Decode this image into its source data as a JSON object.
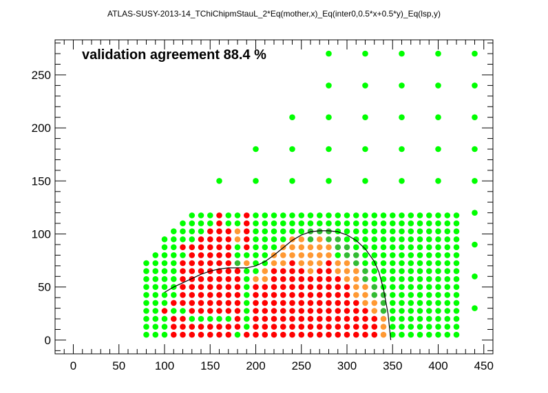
{
  "chart_data": {
    "type": "scatter",
    "title": "ATLAS-SUSY-2013-14_TChiChipmStauL_2*Eq(mother,x)_Eq(inter0,0.5*x+0.5*y)_Eq(lsp,y)",
    "annotation": "validation agreement 88.4 %",
    "xlabel": "",
    "ylabel": "",
    "xlim": [
      -20,
      460
    ],
    "ylim": [
      -13,
      283
    ],
    "xticks": [
      0,
      50,
      100,
      150,
      200,
      250,
      300,
      350,
      400,
      450
    ],
    "yticks": [
      0,
      50,
      100,
      150,
      200,
      250
    ],
    "colors": {
      "bright_green": "#00ff00",
      "dark_green": "#33bb33",
      "red": "#ff0000",
      "orange": "#ff9933",
      "curve": "#000000"
    },
    "grid_columns": {
      "x_start": 80,
      "x_step": 10,
      "x_end": 420,
      "y_start": 5,
      "y_step": 7.5
    },
    "grid_top": [
      75,
      85,
      95,
      105,
      115,
      120,
      120,
      120,
      120,
      120,
      120,
      120,
      120,
      120,
      120,
      120,
      120,
      120,
      120,
      120,
      120,
      120,
      120,
      120,
      120,
      120,
      120,
      120,
      120,
      120,
      120,
      120,
      120,
      120,
      120
    ],
    "category_runs": [
      {
        "x": 80,
        "runs": [
          [
            "G",
            5,
            75
          ]
        ]
      },
      {
        "x": 90,
        "runs": [
          [
            "G",
            5,
            85
          ]
        ]
      },
      {
        "x": 100,
        "runs": [
          [
            "G",
            5,
            27.5
          ],
          [
            "R",
            27.5,
            35
          ],
          [
            "G",
            35,
            95
          ]
        ]
      },
      {
        "x": 110,
        "runs": [
          [
            "R",
            5,
            27.5
          ],
          [
            "G",
            27.5,
            35
          ],
          [
            "R",
            35,
            42.5
          ],
          [
            "G",
            42.5,
            105
          ]
        ]
      },
      {
        "x": 120,
        "runs": [
          [
            "R",
            5,
            27.5
          ],
          [
            "G",
            27.5,
            35
          ],
          [
            "R",
            35,
            80
          ],
          [
            "G",
            80,
            87.5
          ],
          [
            "R",
            87.5,
            95
          ],
          [
            "G",
            95,
            115
          ]
        ]
      },
      {
        "x": 130,
        "runs": [
          [
            "R",
            5,
            20
          ],
          [
            "G",
            20,
            27.5
          ],
          [
            "R",
            27.5,
            95
          ],
          [
            "G",
            95,
            120
          ]
        ]
      },
      {
        "x": 140,
        "runs": [
          [
            "R",
            5,
            20
          ],
          [
            "G",
            20,
            27.5
          ],
          [
            "R",
            27.5,
            102.5
          ],
          [
            "G",
            102.5,
            120
          ]
        ]
      },
      {
        "x": 150,
        "runs": [
          [
            "R",
            5,
            20
          ],
          [
            "G",
            20,
            27.5
          ],
          [
            "R",
            27.5,
            110
          ],
          [
            "G",
            110,
            120
          ]
        ]
      },
      {
        "x": 160,
        "runs": [
          [
            "R",
            5,
            20
          ],
          [
            "G",
            20,
            27.5
          ],
          [
            "R",
            27.5,
            120
          ]
        ]
      },
      {
        "x": 170,
        "runs": [
          [
            "R",
            5,
            20
          ],
          [
            "G",
            20,
            27.5
          ],
          [
            "R",
            27.5,
            110
          ],
          [
            "G",
            110,
            120
          ]
        ]
      },
      {
        "x": 180,
        "runs": [
          [
            "G",
            5,
            12.5
          ],
          [
            "R",
            12.5,
            72.5
          ],
          [
            "D",
            72.5,
            80
          ],
          [
            "G",
            80,
            95
          ],
          [
            "O",
            95,
            110
          ],
          [
            "G",
            110,
            120
          ]
        ]
      },
      {
        "x": 190,
        "runs": [
          [
            "R",
            5,
            12.5
          ],
          [
            "G",
            12.5,
            72.5
          ],
          [
            "O",
            72.5,
            80
          ],
          [
            "G",
            80,
            87.5
          ],
          [
            "R",
            87.5,
            120
          ]
        ]
      },
      {
        "x": 200,
        "runs": [
          [
            "R",
            5,
            57.5
          ],
          [
            "O",
            57.5,
            65
          ],
          [
            "G",
            65,
            120
          ]
        ]
      },
      {
        "x": 210,
        "runs": [
          [
            "R",
            5,
            57.5
          ],
          [
            "O",
            57.5,
            72.5
          ],
          [
            "G",
            72.5,
            120
          ]
        ]
      },
      {
        "x": 220,
        "runs": [
          [
            "R",
            5,
            72.5
          ],
          [
            "O",
            72.5,
            87.5
          ],
          [
            "G",
            87.5,
            120
          ]
        ]
      },
      {
        "x": 230,
        "runs": [
          [
            "R",
            5,
            72.5
          ],
          [
            "O",
            72.5,
            95
          ],
          [
            "G",
            95,
            120
          ]
        ]
      },
      {
        "x": 240,
        "runs": [
          [
            "R",
            5,
            80
          ],
          [
            "O",
            80,
            102.5
          ],
          [
            "G",
            102.5,
            120
          ]
        ]
      },
      {
        "x": 250,
        "runs": [
          [
            "R",
            5,
            72.5
          ],
          [
            "O",
            72.5,
            102.5
          ],
          [
            "G",
            102.5,
            120
          ]
        ]
      },
      {
        "x": 260,
        "runs": [
          [
            "R",
            5,
            65
          ],
          [
            "O",
            65,
            95
          ],
          [
            "D",
            95,
            110
          ],
          [
            "G",
            110,
            120
          ]
        ]
      },
      {
        "x": 270,
        "runs": [
          [
            "R",
            5,
            72.5
          ],
          [
            "O",
            72.5,
            102.5
          ],
          [
            "D",
            102.5,
            110
          ],
          [
            "G",
            110,
            120
          ]
        ]
      },
      {
        "x": 280,
        "runs": [
          [
            "R",
            5,
            80
          ],
          [
            "O",
            80,
            95
          ],
          [
            "D",
            95,
            110
          ],
          [
            "G",
            110,
            120
          ]
        ]
      },
      {
        "x": 290,
        "runs": [
          [
            "R",
            5,
            65
          ],
          [
            "O",
            65,
            80
          ],
          [
            "G",
            80,
            87.5
          ],
          [
            "D",
            87.5,
            102.5
          ],
          [
            "G",
            102.5,
            120
          ]
        ]
      },
      {
        "x": 300,
        "runs": [
          [
            "R",
            5,
            57.5
          ],
          [
            "O",
            57.5,
            80
          ],
          [
            "D",
            80,
            95
          ],
          [
            "G",
            95,
            120
          ]
        ]
      },
      {
        "x": 310,
        "runs": [
          [
            "R",
            5,
            42.5
          ],
          [
            "O",
            42.5,
            72.5
          ],
          [
            "D",
            72.5,
            87.5
          ],
          [
            "G",
            87.5,
            120
          ]
        ]
      },
      {
        "x": 320,
        "runs": [
          [
            "R",
            5,
            35
          ],
          [
            "O",
            35,
            57.5
          ],
          [
            "D",
            57.5,
            72.5
          ],
          [
            "G",
            72.5,
            120
          ]
        ]
      },
      {
        "x": 330,
        "runs": [
          [
            "R",
            5,
            27.5
          ],
          [
            "O",
            27.5,
            42.5
          ],
          [
            "D",
            42.5,
            57.5
          ],
          [
            "G",
            57.5,
            120
          ]
        ]
      },
      {
        "x": 340,
        "runs": [
          [
            "O",
            5,
            27.5
          ],
          [
            "D",
            27.5,
            50
          ],
          [
            "G",
            50,
            120
          ]
        ]
      },
      {
        "x": 350,
        "runs": [
          [
            "G",
            5,
            120
          ]
        ]
      },
      {
        "x": 360,
        "runs": [
          [
            "G",
            5,
            120
          ]
        ]
      },
      {
        "x": 370,
        "runs": [
          [
            "G",
            5,
            120
          ]
        ]
      },
      {
        "x": 380,
        "runs": [
          [
            "G",
            5,
            120
          ]
        ]
      },
      {
        "x": 390,
        "runs": [
          [
            "G",
            5,
            120
          ]
        ]
      },
      {
        "x": 400,
        "runs": [
          [
            "G",
            5,
            120
          ]
        ]
      },
      {
        "x": 410,
        "runs": [
          [
            "G",
            5,
            120
          ]
        ]
      },
      {
        "x": 420,
        "runs": [
          [
            "G",
            5,
            120
          ]
        ]
      }
    ],
    "extra_points": [
      [
        440,
        30
      ],
      [
        440,
        60
      ],
      [
        440,
        90
      ],
      [
        440,
        120
      ],
      [
        440,
        150
      ],
      [
        440,
        180
      ],
      [
        440,
        210
      ],
      [
        440,
        240
      ],
      [
        440,
        270
      ],
      [
        160,
        150
      ],
      [
        200,
        150
      ],
      [
        240,
        150
      ],
      [
        280,
        150
      ],
      [
        320,
        150
      ],
      [
        360,
        150
      ],
      [
        400,
        150
      ],
      [
        200,
        180
      ],
      [
        240,
        180
      ],
      [
        280,
        180
      ],
      [
        320,
        180
      ],
      [
        360,
        180
      ],
      [
        400,
        180
      ],
      [
        240,
        210
      ],
      [
        280,
        210
      ],
      [
        320,
        210
      ],
      [
        360,
        210
      ],
      [
        400,
        210
      ],
      [
        280,
        240
      ],
      [
        320,
        240
      ],
      [
        360,
        240
      ],
      [
        400,
        240
      ],
      [
        280,
        270
      ],
      [
        320,
        270
      ],
      [
        360,
        270
      ],
      [
        400,
        270
      ]
    ],
    "exclusion_curve": [
      [
        100,
        45
      ],
      [
        110,
        50
      ],
      [
        120,
        54
      ],
      [
        130,
        58
      ],
      [
        140,
        62
      ],
      [
        150,
        65
      ],
      [
        160,
        67
      ],
      [
        170,
        68
      ],
      [
        180,
        68
      ],
      [
        190,
        68
      ],
      [
        200,
        70
      ],
      [
        210,
        74
      ],
      [
        220,
        80
      ],
      [
        230,
        87
      ],
      [
        240,
        94
      ],
      [
        250,
        99
      ],
      [
        260,
        102
      ],
      [
        270,
        103
      ],
      [
        280,
        103
      ],
      [
        290,
        102
      ],
      [
        300,
        99
      ],
      [
        310,
        94
      ],
      [
        320,
        86
      ],
      [
        330,
        74
      ],
      [
        335,
        64
      ],
      [
        340,
        48
      ],
      [
        345,
        25
      ],
      [
        348,
        0
      ]
    ]
  }
}
